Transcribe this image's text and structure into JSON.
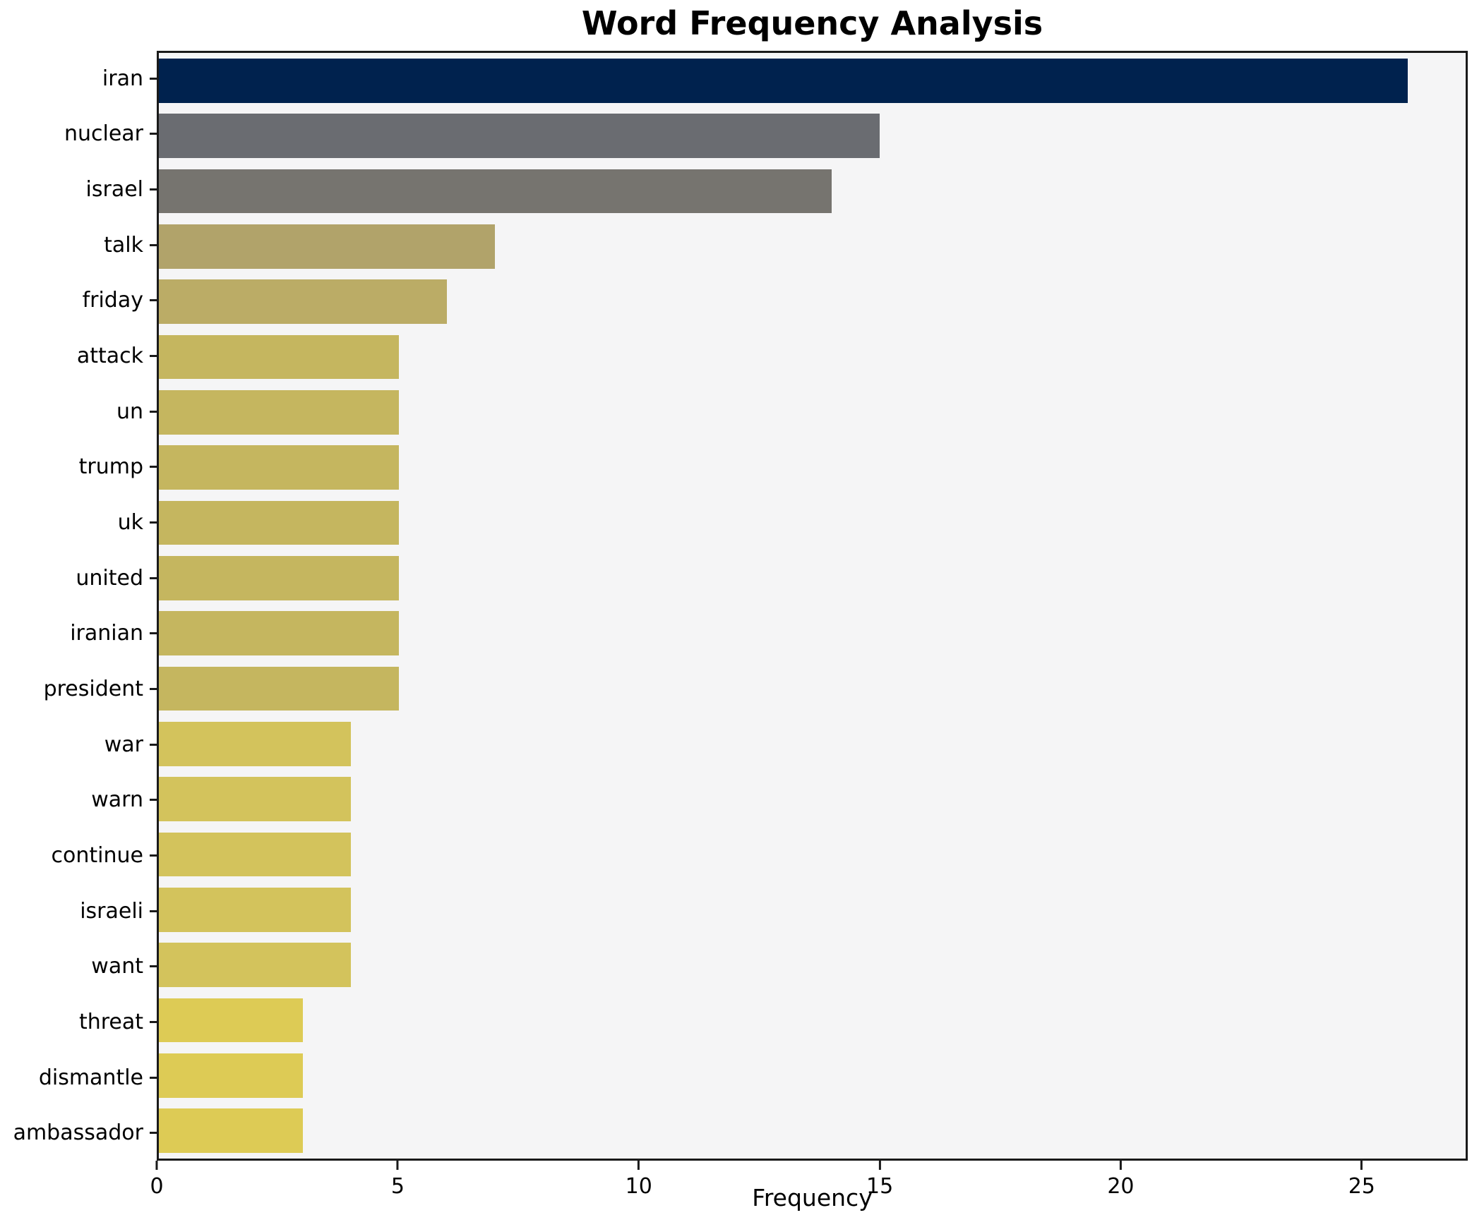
{
  "title": "Word Frequency Analysis",
  "chart_data": {
    "type": "bar",
    "orientation": "horizontal",
    "title": "Word Frequency Analysis",
    "xlabel": "Frequency",
    "ylabel": "",
    "categories": [
      "iran",
      "nuclear",
      "israel",
      "talk",
      "friday",
      "attack",
      "un",
      "trump",
      "uk",
      "united",
      "iranian",
      "president",
      "war",
      "warn",
      "continue",
      "israeli",
      "want",
      "threat",
      "dismantle",
      "ambassador"
    ],
    "values": [
      26,
      15,
      14,
      7,
      6,
      5,
      5,
      5,
      5,
      5,
      5,
      5,
      4,
      4,
      4,
      4,
      4,
      3,
      3,
      3
    ],
    "bar_colors": [
      "#00224e",
      "#6a6c71",
      "#76746f",
      "#b1a36a",
      "#bbac66",
      "#c5b65f",
      "#c5b65f",
      "#c5b65f",
      "#c5b65f",
      "#c5b65f",
      "#c5b65f",
      "#c5b65f",
      "#d3c35c",
      "#d3c35c",
      "#d3c35c",
      "#d3c35c",
      "#d3c35c",
      "#ddcb55",
      "#ddcb55",
      "#ddcb55"
    ],
    "xlim": [
      0,
      27.2
    ],
    "xticks": [
      0,
      5,
      10,
      15,
      20,
      25
    ],
    "grid": false,
    "legend": null,
    "plot_background": "#f5f5f6",
    "figure_background": "#ffffff",
    "spine_color": "#1a1a1a"
  }
}
